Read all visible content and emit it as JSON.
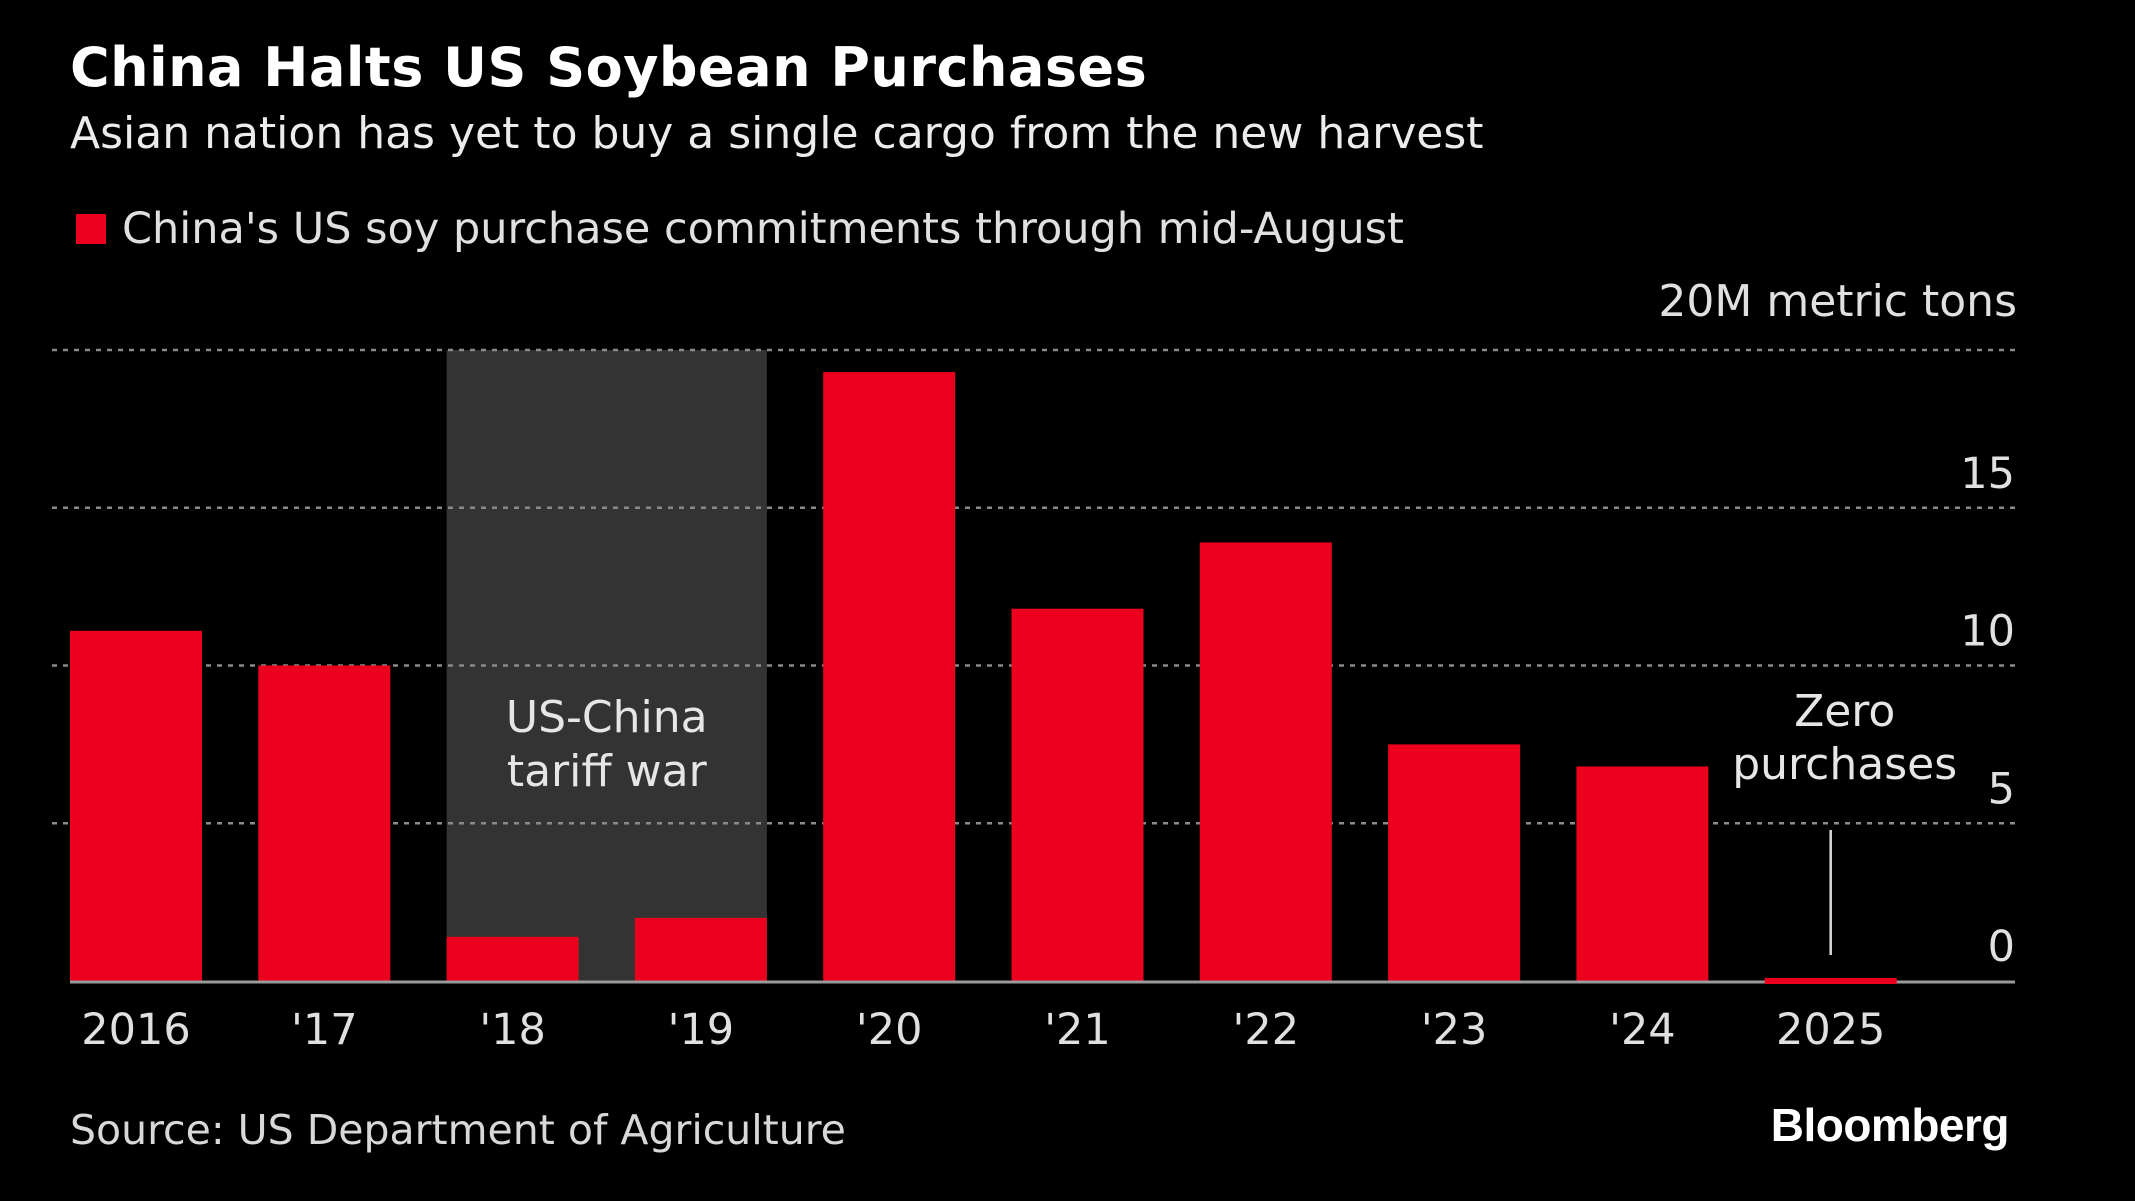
{
  "header": {
    "title": "China Halts US Soybean Purchases",
    "subtitle": "Asian nation has yet to buy a single cargo from the new harvest"
  },
  "legend": {
    "label": "China's US soy purchase commitments through mid-August",
    "color": "#EB001E"
  },
  "footer": {
    "source": "Source: US Department of Agriculture",
    "logo": "Bloomberg"
  },
  "chart_data": {
    "type": "bar",
    "title": "China Halts US Soybean Purchases",
    "subtitle": "Asian nation has yet to buy a single cargo from the new harvest",
    "ylabel": "20M metric tons",
    "xlabel": "",
    "categories": [
      "2016",
      "'17",
      "'18",
      "'19",
      "'20",
      "'21",
      "'22",
      "'23",
      "'24",
      "2025"
    ],
    "series": [
      {
        "name": "China's US soy purchase commitments through mid-August",
        "values": [
          11.1,
          10.0,
          1.4,
          2.0,
          19.3,
          11.8,
          13.9,
          7.5,
          6.8,
          0.0
        ],
        "color": "#EB001E"
      }
    ],
    "ylim": [
      0,
      20
    ],
    "yticks": [
      0,
      5,
      10,
      15,
      20
    ],
    "ytick_labels": [
      "0",
      "5",
      "10",
      "15",
      "20M metric tons"
    ],
    "grid": true,
    "legend_position": "top-left",
    "axis_position": "right",
    "shaded_region": {
      "from_category": "'18",
      "to_category": "'19",
      "label_line1": "US-China",
      "label_line2": "tariff war",
      "color": "#333333"
    },
    "annotations": [
      {
        "category": "2025",
        "line1": "Zero",
        "line2": "purchases"
      }
    ]
  }
}
